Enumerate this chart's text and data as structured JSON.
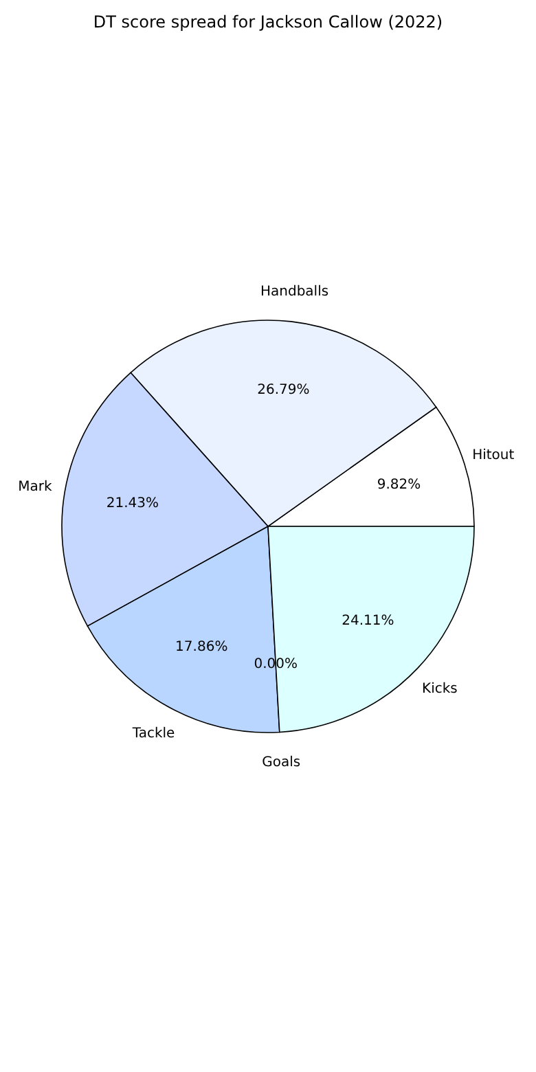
{
  "chart_data": {
    "type": "pie",
    "title": "DT score spread for Jackson Callow (2022)",
    "categories": [
      "Hitout",
      "Handballs",
      "Mark",
      "Tackle",
      "Goals",
      "Kicks"
    ],
    "values": [
      9.82,
      26.79,
      21.43,
      17.86,
      0.0,
      24.11
    ],
    "value_labels": [
      "9.82%",
      "26.79%",
      "21.43%",
      "17.86%",
      "0.00%",
      "24.11%"
    ],
    "colors": [
      "#ffffff",
      "#eaf1ff",
      "#c6d8ff",
      "#b8d6ff",
      "#d0e8ff",
      "#dcffff"
    ]
  }
}
